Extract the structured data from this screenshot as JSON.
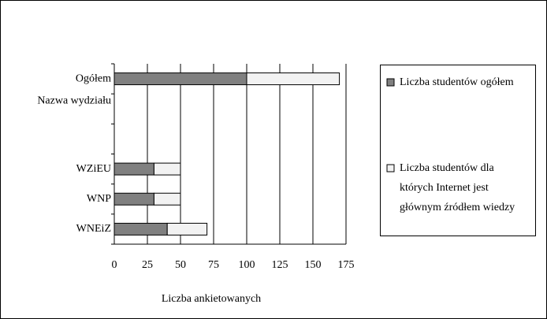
{
  "chart_data": {
    "type": "hbar_stacked",
    "categories": [
      "Ogółem",
      "Nazwa wydziału",
      null,
      "WZiEU",
      "WNP",
      "WNEiZ"
    ],
    "series": [
      {
        "name": "Liczba studentów ogółem",
        "color": "#808080",
        "values": [
          100,
          null,
          null,
          30,
          30,
          40
        ]
      },
      {
        "name": "Liczba studentów dla których Internet jest głównym źródłem wiedzy",
        "color": "#f2f2f2",
        "values": [
          70,
          null,
          null,
          20,
          20,
          30
        ]
      }
    ],
    "xlabel": "Liczba ankietowanych",
    "xlim": [
      0,
      175
    ],
    "xticks": [
      0,
      25,
      50,
      75,
      100,
      125,
      150,
      175
    ],
    "grid": true,
    "legend": "right"
  }
}
